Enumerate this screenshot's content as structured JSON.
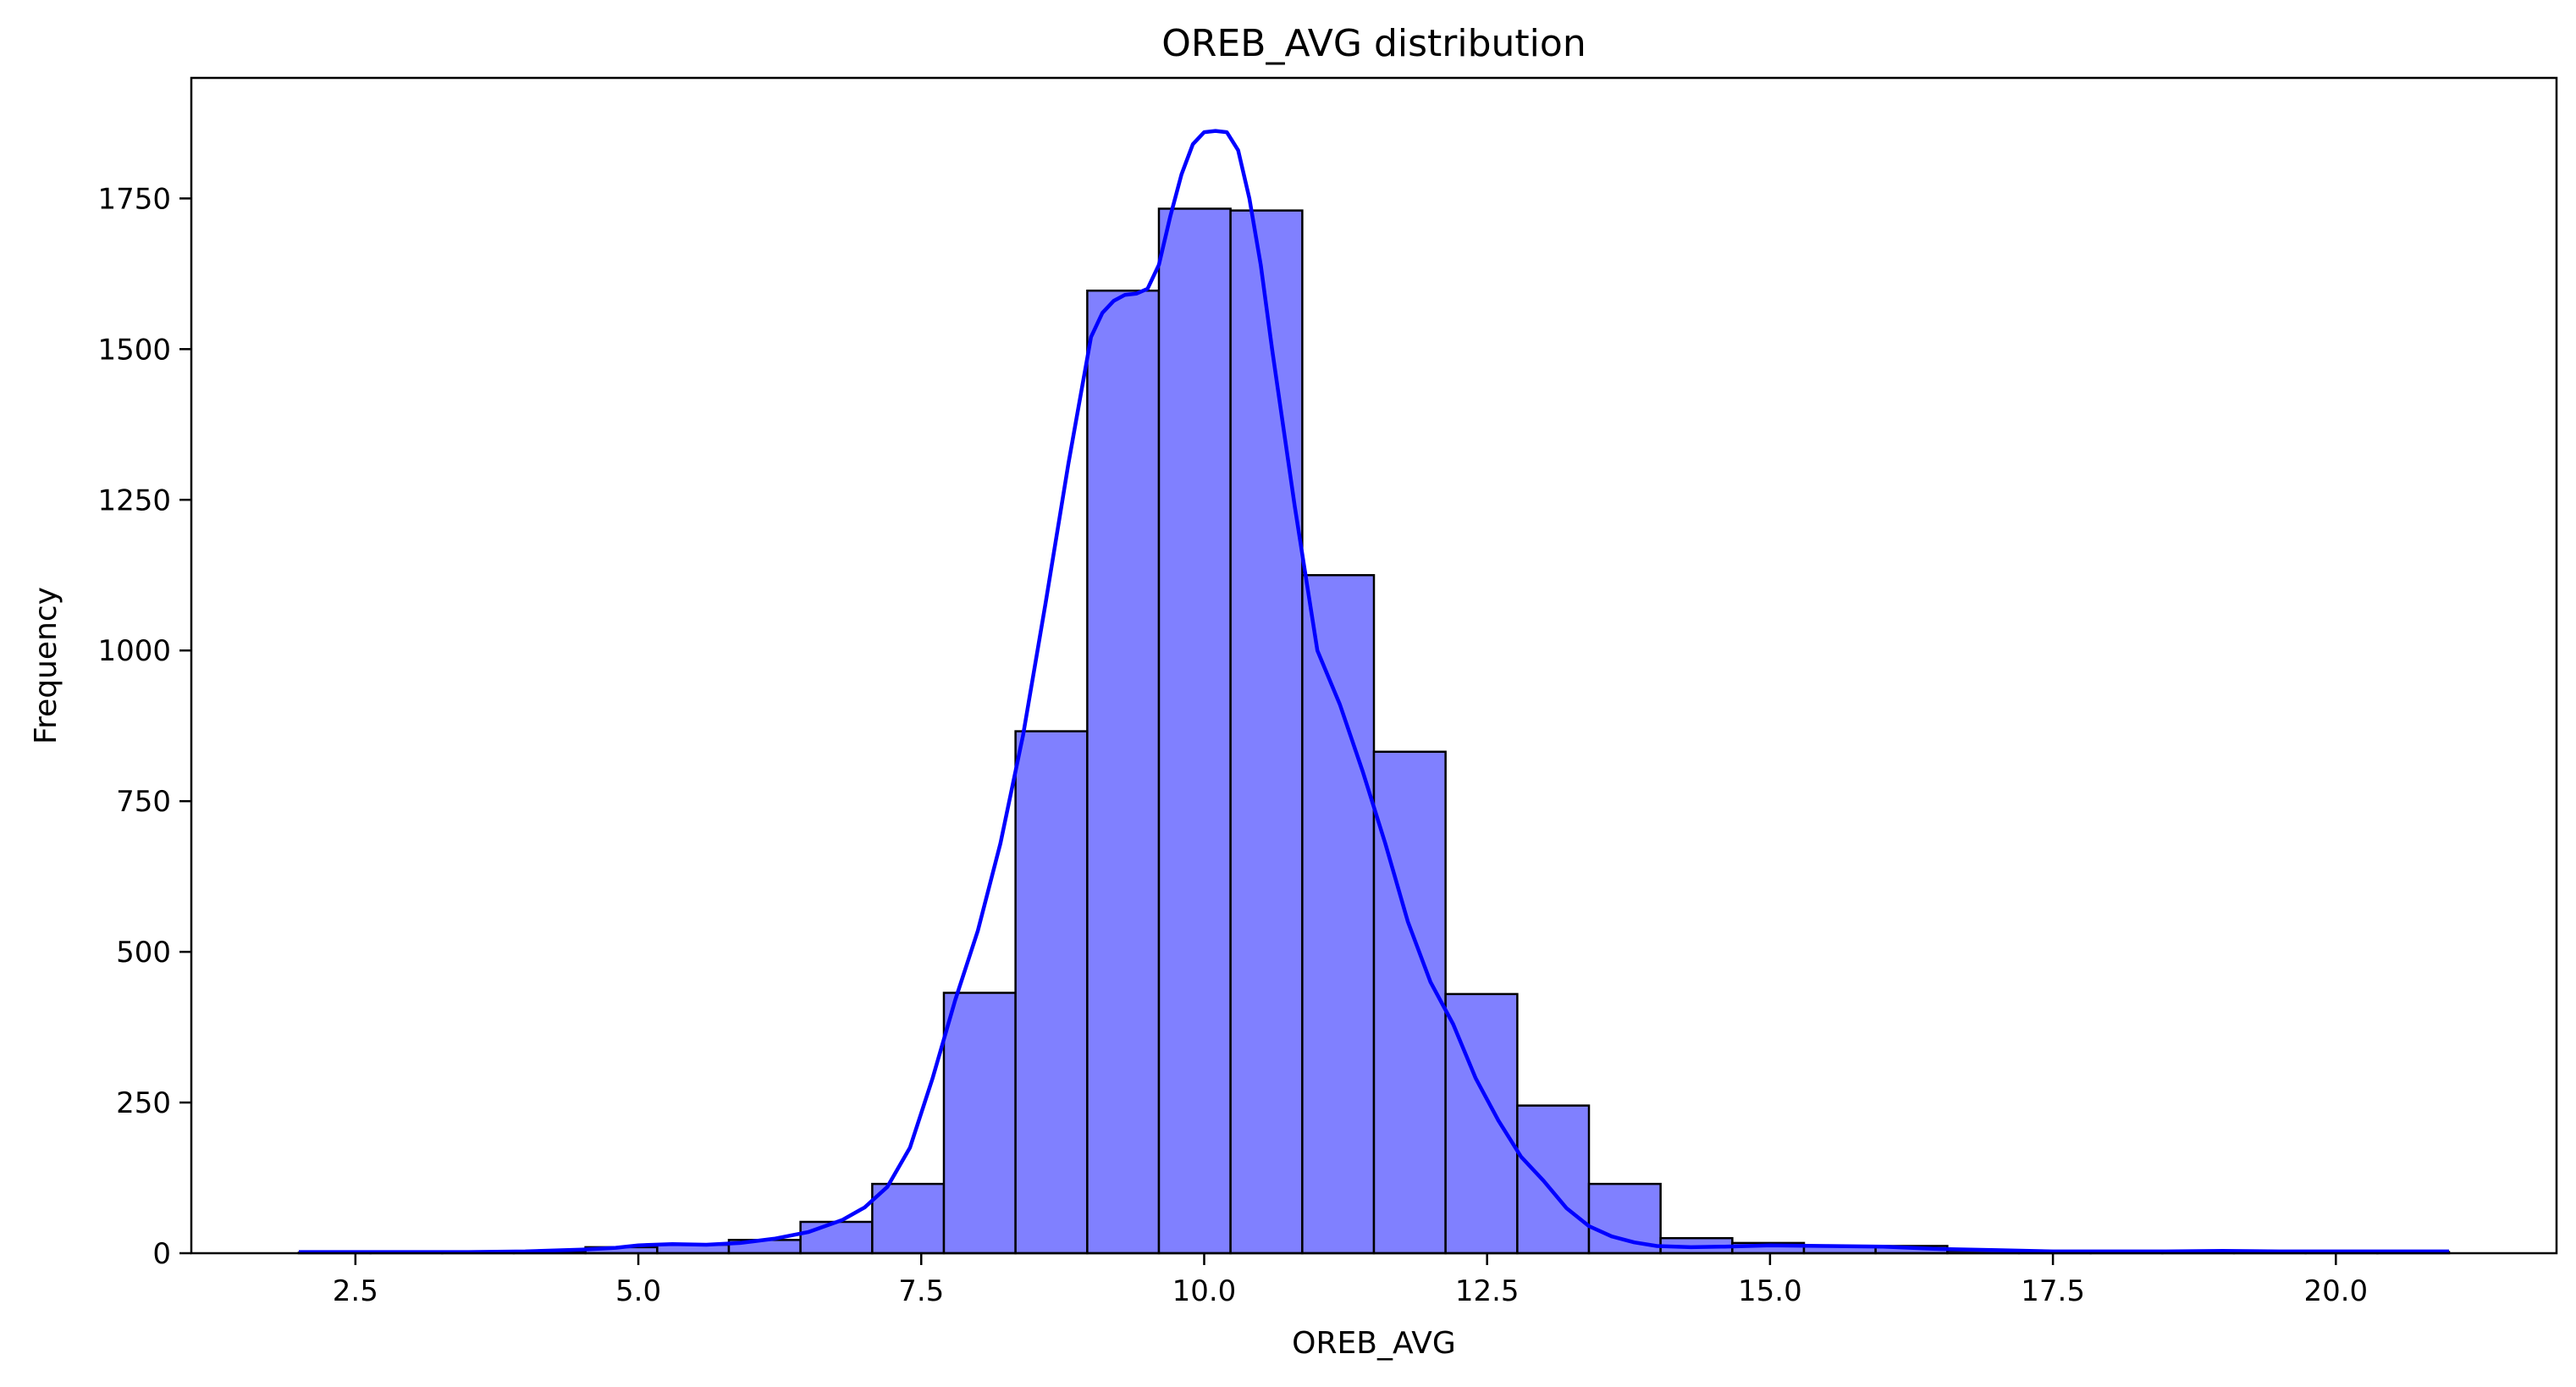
{
  "chart_data": {
    "type": "bar",
    "title": "OREB_AVG distribution",
    "xlabel": "OREB_AVG",
    "ylabel": "Frequency",
    "xlim": [
      1.05,
      21.95
    ],
    "ylim": [
      0,
      1950
    ],
    "xticks": [
      2.5,
      5.0,
      7.5,
      10.0,
      12.5,
      15.0,
      17.5,
      20.0
    ],
    "xtick_labels": [
      "2.5",
      "5.0",
      "7.5",
      "10.0",
      "12.5",
      "15.0",
      "17.5",
      "20.0"
    ],
    "yticks": [
      0,
      250,
      500,
      750,
      1000,
      1250,
      1500,
      1750
    ],
    "ytick_labels": [
      "0",
      "250",
      "500",
      "750",
      "1000",
      "1250",
      "1500",
      "1750"
    ],
    "grid": false,
    "legend": "none",
    "bar_fill_color": "#8080ff",
    "bar_edge_color": "#000000",
    "kde_color": "#0000ff",
    "bins": [
      {
        "x0": 2.0,
        "x1": 2.633,
        "count": 1
      },
      {
        "x0": 2.633,
        "x1": 3.267,
        "count": 1
      },
      {
        "x0": 3.267,
        "x1": 3.9,
        "count": 1
      },
      {
        "x0": 3.9,
        "x1": 4.533,
        "count": 3
      },
      {
        "x0": 4.533,
        "x1": 5.167,
        "count": 10
      },
      {
        "x0": 5.167,
        "x1": 5.8,
        "count": 14
      },
      {
        "x0": 5.8,
        "x1": 6.433,
        "count": 22
      },
      {
        "x0": 6.433,
        "x1": 7.067,
        "count": 52
      },
      {
        "x0": 7.067,
        "x1": 7.7,
        "count": 115
      },
      {
        "x0": 7.7,
        "x1": 8.333,
        "count": 432
      },
      {
        "x0": 8.333,
        "x1": 8.967,
        "count": 866
      },
      {
        "x0": 8.967,
        "x1": 9.6,
        "count": 1597
      },
      {
        "x0": 9.6,
        "x1": 10.233,
        "count": 1733
      },
      {
        "x0": 10.233,
        "x1": 10.867,
        "count": 1730
      },
      {
        "x0": 10.867,
        "x1": 11.5,
        "count": 1125
      },
      {
        "x0": 11.5,
        "x1": 12.133,
        "count": 832
      },
      {
        "x0": 12.133,
        "x1": 12.767,
        "count": 430
      },
      {
        "x0": 12.767,
        "x1": 13.4,
        "count": 245
      },
      {
        "x0": 13.4,
        "x1": 14.033,
        "count": 115
      },
      {
        "x0": 14.033,
        "x1": 14.667,
        "count": 25
      },
      {
        "x0": 14.667,
        "x1": 15.3,
        "count": 17
      },
      {
        "x0": 15.3,
        "x1": 15.933,
        "count": 11
      },
      {
        "x0": 15.933,
        "x1": 16.567,
        "count": 12
      },
      {
        "x0": 16.567,
        "x1": 17.2,
        "count": 4
      },
      {
        "x0": 17.2,
        "x1": 17.833,
        "count": 2
      },
      {
        "x0": 17.833,
        "x1": 18.467,
        "count": 3
      },
      {
        "x0": 18.467,
        "x1": 19.1,
        "count": 3
      },
      {
        "x0": 19.1,
        "x1": 19.733,
        "count": 2
      },
      {
        "x0": 19.733,
        "x1": 20.367,
        "count": 3
      },
      {
        "x0": 20.367,
        "x1": 21.0,
        "count": 2
      }
    ],
    "kde": {
      "x": [
        2.0,
        2.5,
        3.0,
        3.5,
        4.0,
        4.5,
        4.8,
        5.0,
        5.3,
        5.6,
        5.9,
        6.2,
        6.5,
        6.8,
        7.0,
        7.2,
        7.4,
        7.6,
        7.8,
        8.0,
        8.2,
        8.4,
        8.6,
        8.8,
        9.0,
        9.1,
        9.2,
        9.3,
        9.4,
        9.5,
        9.6,
        9.7,
        9.8,
        9.9,
        10.0,
        10.1,
        10.2,
        10.3,
        10.4,
        10.5,
        10.6,
        10.8,
        11.0,
        11.2,
        11.4,
        11.6,
        11.8,
        12.0,
        12.2,
        12.4,
        12.6,
        12.8,
        13.0,
        13.2,
        13.4,
        13.6,
        13.8,
        14.0,
        14.3,
        14.6,
        15.0,
        15.5,
        16.0,
        16.5,
        17.0,
        17.5,
        18.0,
        18.5,
        19.0,
        19.5,
        20.0,
        20.5,
        21.0
      ],
      "y": [
        2,
        2,
        2,
        2,
        3,
        6,
        9,
        13,
        15,
        14,
        17,
        24,
        35,
        55,
        76,
        110,
        175,
        290,
        420,
        535,
        680,
        860,
        1080,
        1310,
        1520,
        1560,
        1580,
        1590,
        1592,
        1600,
        1640,
        1720,
        1790,
        1840,
        1860,
        1862,
        1860,
        1830,
        1750,
        1640,
        1500,
        1240,
        1000,
        910,
        800,
        680,
        550,
        450,
        380,
        290,
        220,
        160,
        120,
        75,
        45,
        28,
        18,
        12,
        10,
        11,
        13,
        12,
        11,
        7,
        5,
        3,
        3,
        3,
        4,
        3,
        3,
        3,
        3
      ]
    }
  }
}
